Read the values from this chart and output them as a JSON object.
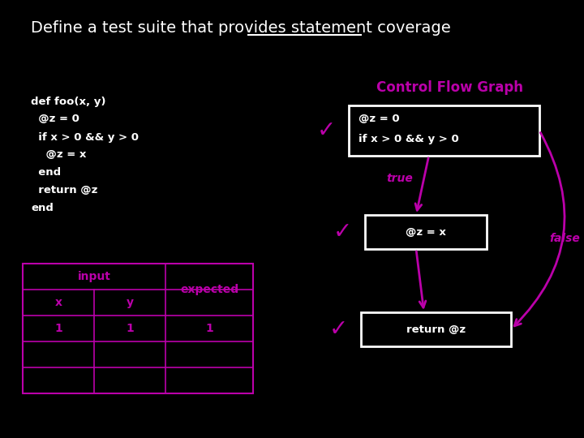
{
  "title_normal": "Define a test suite that provides ",
  "title_underline": "statement coverage",
  "bg_color": "#000000",
  "text_color": "#ffffff",
  "magenta": "#bb00aa",
  "code_color": "#ffffff",
  "cfgTitle": "Control Flow Graph",
  "code_lines": [
    "def foo(x, y)",
    "  @z = 0",
    "  if x > 0 && y > 0",
    "    @z = x",
    "  end",
    "  return @z",
    "end"
  ],
  "node1_lines": [
    "@z = 0",
    "if x > 0 && y > 0"
  ],
  "node2_lines": [
    "@z = x"
  ],
  "node3_lines": [
    "return @z"
  ],
  "table_cols": [
    "x",
    "y",
    "expected"
  ],
  "table_header_merged": "input",
  "table_data": [
    [
      "1",
      "1",
      "1"
    ],
    [
      "",
      "",
      ""
    ],
    [
      "",
      "",
      ""
    ]
  ],
  "checkmark": "✓"
}
